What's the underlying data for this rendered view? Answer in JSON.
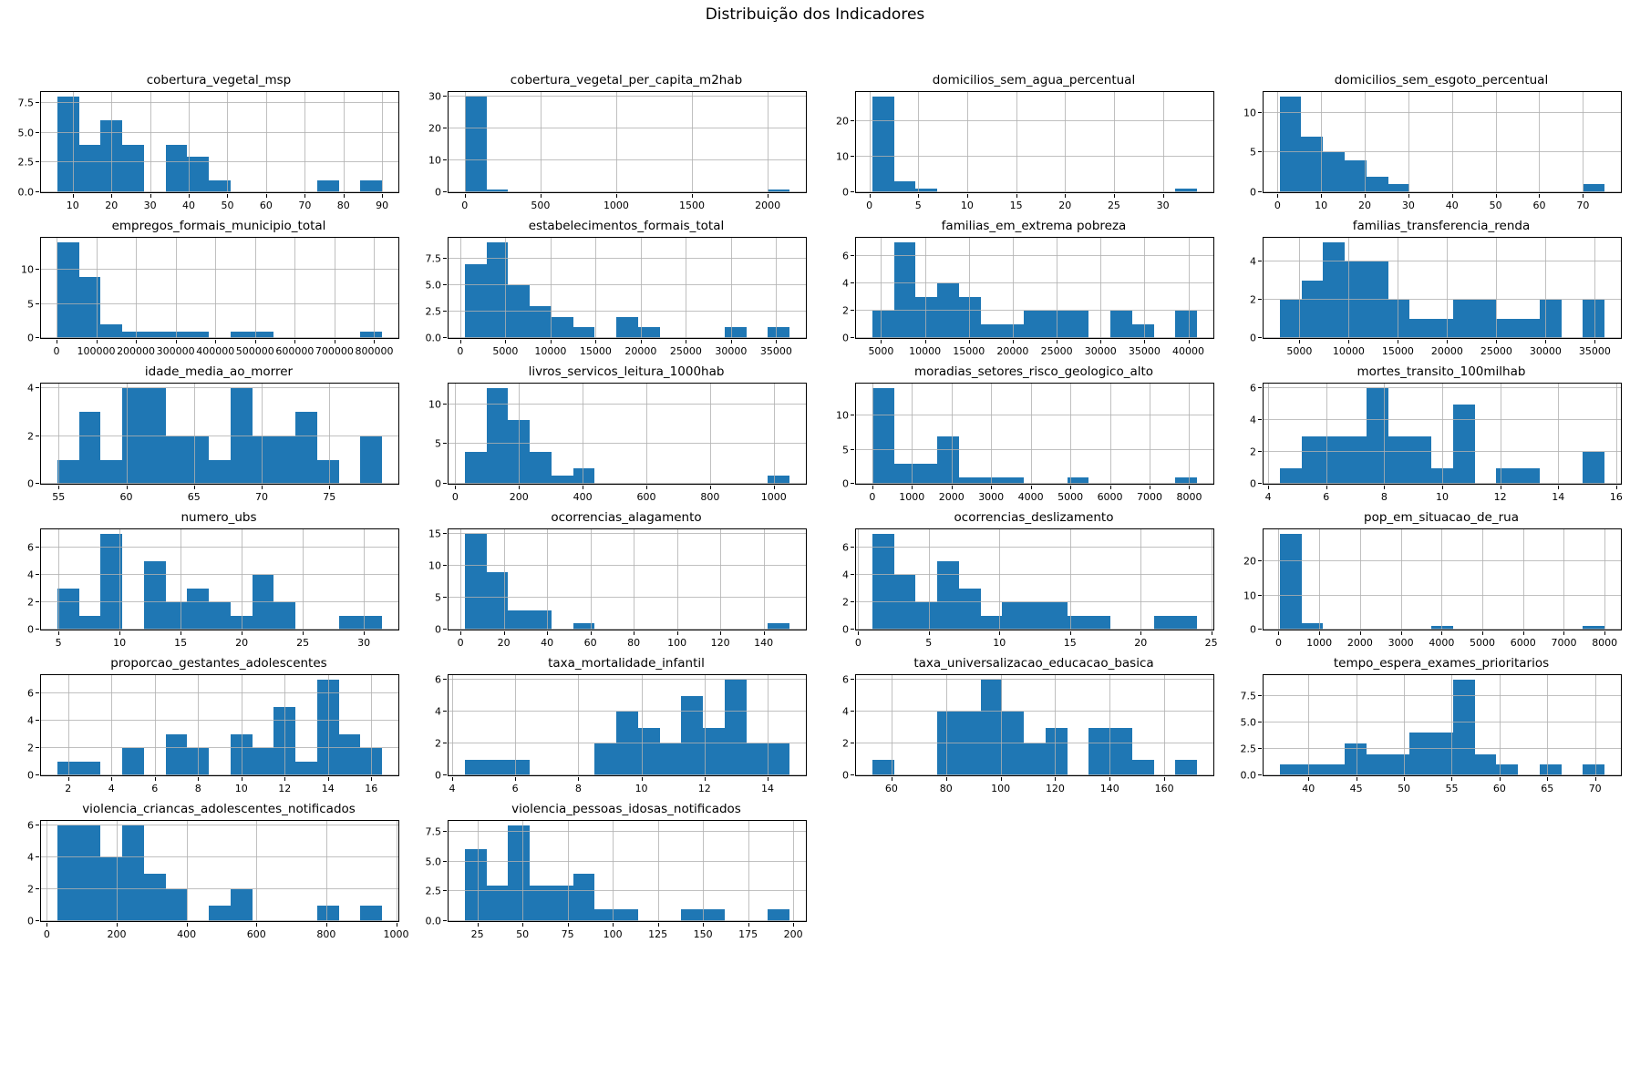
{
  "figure": {
    "title": "Distribuição dos Indicadores",
    "bar_color": "#1f77b4",
    "grid_color": "#b0b0b0",
    "grid": "on",
    "layout": "4 columns x 6 rows of histogram subplots"
  },
  "chart_data": [
    {
      "type": "bar",
      "subtype": "histogram",
      "title": "cobertura_vegetal_msp",
      "bin_start": 6,
      "bin_end": 90,
      "heights": [
        8,
        4,
        6,
        4,
        0,
        4,
        3,
        1,
        0,
        0,
        0,
        0,
        1,
        0,
        1
      ],
      "xlim": [
        1.8,
        94.2
      ],
      "ylim": [
        0,
        8.4
      ],
      "x_ticks": [
        10,
        20,
        30,
        40,
        50,
        60,
        70,
        80,
        90
      ],
      "x_labels": [
        "10",
        "20",
        "30",
        "40",
        "50",
        "60",
        "70",
        "80",
        "90"
      ],
      "y_ticks": [
        0,
        2.5,
        5,
        7.5
      ],
      "y_labels": [
        "0.0",
        "2.5",
        "5.0",
        "7.5"
      ]
    },
    {
      "type": "bar",
      "subtype": "histogram",
      "title": "cobertura_vegetal_per_capita_m2hab",
      "bin_start": 0,
      "bin_end": 2145,
      "heights": [
        30,
        1,
        0,
        0,
        0,
        0,
        0,
        0,
        0,
        0,
        0,
        0,
        0,
        0,
        1
      ],
      "xlim": [
        -107,
        2252
      ],
      "ylim": [
        0,
        31.5
      ],
      "x_ticks": [
        0,
        500,
        1000,
        1500,
        2000
      ],
      "x_labels": [
        "0",
        "500",
        "1000",
        "1500",
        "2000"
      ],
      "y_ticks": [
        0,
        10,
        20,
        30
      ],
      "y_labels": [
        "0",
        "10",
        "20",
        "30"
      ]
    },
    {
      "type": "bar",
      "subtype": "histogram",
      "title": "domicilios_sem_agua_percentual",
      "bin_start": 0.3,
      "bin_end": 33.5,
      "heights": [
        27,
        3,
        1,
        0,
        0,
        0,
        0,
        0,
        0,
        0,
        0,
        0,
        0,
        0,
        1
      ],
      "xlim": [
        -1.36,
        35.16
      ],
      "ylim": [
        0,
        28.35
      ],
      "x_ticks": [
        0,
        5,
        10,
        15,
        20,
        25,
        30
      ],
      "x_labels": [
        "0",
        "5",
        "10",
        "15",
        "20",
        "25",
        "30"
      ],
      "y_ticks": [
        0,
        10,
        20
      ],
      "y_labels": [
        "0",
        "10",
        "20"
      ]
    },
    {
      "type": "bar",
      "subtype": "histogram",
      "title": "domicilios_sem_esgoto_percentual",
      "bin_start": 0.5,
      "bin_end": 75,
      "heights": [
        12,
        7,
        5,
        4,
        2,
        1,
        0,
        0,
        0,
        0,
        0,
        0,
        0,
        0,
        1
      ],
      "xlim": [
        -3.2,
        78.7
      ],
      "ylim": [
        0,
        12.6
      ],
      "x_ticks": [
        0,
        10,
        20,
        30,
        40,
        50,
        60,
        70
      ],
      "x_labels": [
        "0",
        "10",
        "20",
        "30",
        "40",
        "50",
        "60",
        "70"
      ],
      "y_ticks": [
        0,
        5,
        10
      ],
      "y_labels": [
        "0",
        "5",
        "10"
      ]
    },
    {
      "type": "bar",
      "subtype": "histogram",
      "title": "empregos_formais_municipio_total",
      "bin_start": 2000,
      "bin_end": 820000,
      "heights": [
        14,
        9,
        2,
        1,
        1,
        1,
        1,
        0,
        1,
        1,
        0,
        0,
        0,
        0,
        1
      ],
      "xlim": [
        -38900,
        860900
      ],
      "ylim": [
        0,
        14.7
      ],
      "x_ticks": [
        0,
        100000,
        200000,
        300000,
        400000,
        500000,
        600000,
        700000,
        800000
      ],
      "x_labels": [
        "0",
        "100000",
        "200000",
        "300000",
        "400000",
        "500000",
        "600000",
        "700000",
        "800000"
      ],
      "y_ticks": [
        0,
        5,
        10
      ],
      "y_labels": [
        "0",
        "5",
        "10"
      ]
    },
    {
      "type": "bar",
      "subtype": "histogram",
      "title": "estabelecimentos_formais_total",
      "bin_start": 500,
      "bin_end": 36500,
      "heights": [
        7,
        9,
        5,
        3,
        2,
        1,
        0,
        2,
        1,
        0,
        0,
        0,
        1,
        0,
        1
      ],
      "xlim": [
        -1300,
        38300
      ],
      "ylim": [
        0,
        9.45
      ],
      "x_ticks": [
        0,
        5000,
        10000,
        15000,
        20000,
        25000,
        30000,
        35000
      ],
      "x_labels": [
        "0",
        "5000",
        "10000",
        "15000",
        "20000",
        "25000",
        "30000",
        "35000"
      ],
      "y_ticks": [
        0,
        2.5,
        5,
        7.5
      ],
      "y_labels": [
        "0.0",
        "2.5",
        "5.0",
        "7.5"
      ]
    },
    {
      "type": "bar",
      "subtype": "histogram",
      "title": "familias_em_extrema pobreza",
      "bin_start": 4000,
      "bin_end": 41000,
      "heights": [
        2,
        7,
        3,
        4,
        3,
        1,
        1,
        2,
        2,
        2,
        0,
        2,
        1,
        0,
        2
      ],
      "xlim": [
        2150,
        42850
      ],
      "ylim": [
        0,
        7.35
      ],
      "x_ticks": [
        5000,
        10000,
        15000,
        20000,
        25000,
        30000,
        35000,
        40000
      ],
      "x_labels": [
        "5000",
        "10000",
        "15000",
        "20000",
        "25000",
        "30000",
        "35000",
        "40000"
      ],
      "y_ticks": [
        0,
        2,
        4,
        6
      ],
      "y_labels": [
        "0",
        "2",
        "4",
        "6"
      ]
    },
    {
      "type": "bar",
      "subtype": "histogram",
      "title": "familias_transferencia_renda",
      "bin_start": 3000,
      "bin_end": 36000,
      "heights": [
        2,
        3,
        5,
        4,
        4,
        2,
        1,
        1,
        2,
        2,
        1,
        1,
        2,
        0,
        2
      ],
      "xlim": [
        1350,
        37650
      ],
      "ylim": [
        0,
        5.25
      ],
      "x_ticks": [
        5000,
        10000,
        15000,
        20000,
        25000,
        30000,
        35000
      ],
      "x_labels": [
        "5000",
        "10000",
        "15000",
        "20000",
        "25000",
        "30000",
        "35000"
      ],
      "y_ticks": [
        0,
        2,
        4
      ],
      "y_labels": [
        "0",
        "2",
        "4"
      ]
    },
    {
      "type": "bar",
      "subtype": "histogram",
      "title": "idade_media_ao_morrer",
      "bin_start": 54.9,
      "bin_end": 78.9,
      "heights": [
        1,
        3,
        1,
        4,
        4,
        2,
        2,
        1,
        4,
        2,
        2,
        3,
        1,
        0,
        2
      ],
      "xlim": [
        53.7,
        80.1
      ],
      "ylim": [
        0,
        4.2
      ],
      "x_ticks": [
        55,
        60,
        65,
        70,
        75
      ],
      "x_labels": [
        "55",
        "60",
        "65",
        "70",
        "75"
      ],
      "y_ticks": [
        0,
        2,
        4
      ],
      "y_labels": [
        "0",
        "2",
        "4"
      ]
    },
    {
      "type": "bar",
      "subtype": "histogram",
      "title": "livros_servicos_leitura_1000hab",
      "bin_start": 30,
      "bin_end": 1050,
      "heights": [
        4,
        12,
        8,
        4,
        1,
        2,
        0,
        0,
        0,
        0,
        0,
        0,
        0,
        0,
        1
      ],
      "xlim": [
        -21,
        1101
      ],
      "ylim": [
        0,
        12.6
      ],
      "x_ticks": [
        0,
        200,
        400,
        600,
        800,
        1000
      ],
      "x_labels": [
        "0",
        "200",
        "400",
        "600",
        "800",
        "1000"
      ],
      "y_ticks": [
        0,
        5,
        10
      ],
      "y_labels": [
        "0",
        "5",
        "10"
      ]
    },
    {
      "type": "bar",
      "subtype": "histogram",
      "title": "moradias_setores_risco_geologico_alto",
      "bin_start": 0,
      "bin_end": 8200,
      "heights": [
        14,
        3,
        3,
        7,
        1,
        1,
        1,
        0,
        0,
        1,
        0,
        0,
        0,
        0,
        1
      ],
      "xlim": [
        -410,
        8610
      ],
      "ylim": [
        0,
        14.7
      ],
      "x_ticks": [
        0,
        1000,
        2000,
        3000,
        4000,
        5000,
        6000,
        7000,
        8000
      ],
      "x_labels": [
        "0",
        "1000",
        "2000",
        "3000",
        "4000",
        "5000",
        "6000",
        "7000",
        "8000"
      ],
      "y_ticks": [
        0,
        5,
        10
      ],
      "y_labels": [
        "0",
        "5",
        "10"
      ]
    },
    {
      "type": "bar",
      "subtype": "histogram",
      "title": "mortes_transito_100milhab",
      "bin_start": 4.4,
      "bin_end": 15.6,
      "heights": [
        1,
        3,
        3,
        3,
        6,
        3,
        3,
        1,
        5,
        0,
        1,
        1,
        0,
        0,
        2
      ],
      "xlim": [
        3.84,
        16.16
      ],
      "ylim": [
        0,
        6.3
      ],
      "x_ticks": [
        4,
        6,
        8,
        10,
        12,
        14,
        16
      ],
      "x_labels": [
        "4",
        "6",
        "8",
        "10",
        "12",
        "14",
        "16"
      ],
      "y_ticks": [
        0,
        2,
        4,
        6
      ],
      "y_labels": [
        "0",
        "2",
        "4",
        "6"
      ]
    },
    {
      "type": "bar",
      "subtype": "histogram",
      "title": "numero_ubs",
      "bin_start": 4.9,
      "bin_end": 31.5,
      "heights": [
        3,
        1,
        7,
        0,
        5,
        2,
        3,
        2,
        1,
        4,
        2,
        0,
        0,
        1,
        1
      ],
      "xlim": [
        3.57,
        32.83
      ],
      "ylim": [
        0,
        7.35
      ],
      "x_ticks": [
        5,
        10,
        15,
        20,
        25,
        30
      ],
      "x_labels": [
        "5",
        "10",
        "15",
        "20",
        "25",
        "30"
      ],
      "y_ticks": [
        0,
        2,
        4,
        6
      ],
      "y_labels": [
        "0",
        "2",
        "4",
        "6"
      ]
    },
    {
      "type": "bar",
      "subtype": "histogram",
      "title": "ocorrencias_alagamento",
      "bin_start": 2,
      "bin_end": 152,
      "heights": [
        15,
        9,
        3,
        3,
        0,
        1,
        0,
        0,
        0,
        0,
        0,
        0,
        0,
        0,
        1
      ],
      "xlim": [
        -5.5,
        159.5
      ],
      "ylim": [
        0,
        15.75
      ],
      "x_ticks": [
        0,
        20,
        40,
        60,
        80,
        100,
        120,
        140
      ],
      "x_labels": [
        "0",
        "20",
        "40",
        "60",
        "80",
        "100",
        "120",
        "140"
      ],
      "y_ticks": [
        0,
        5,
        10,
        15
      ],
      "y_labels": [
        "0",
        "5",
        "10",
        "15"
      ]
    },
    {
      "type": "bar",
      "subtype": "histogram",
      "title": "ocorrencias_deslizamento",
      "bin_start": 1,
      "bin_end": 24,
      "heights": [
        7,
        4,
        2,
        5,
        3,
        1,
        2,
        2,
        2,
        1,
        1,
        0,
        0,
        1,
        1
      ],
      "xlim": [
        -0.15,
        25.15
      ],
      "ylim": [
        0,
        7.35
      ],
      "x_ticks": [
        0,
        5,
        10,
        15,
        20,
        25
      ],
      "x_labels": [
        "0",
        "5",
        "10",
        "15",
        "20",
        "25"
      ],
      "y_ticks": [
        0,
        2,
        4,
        6
      ],
      "y_labels": [
        "0",
        "2",
        "4",
        "6"
      ]
    },
    {
      "type": "bar",
      "subtype": "histogram",
      "title": "pop_em_situacao_de_rua",
      "bin_start": 30,
      "bin_end": 8000,
      "heights": [
        28,
        2,
        0,
        0,
        0,
        0,
        0,
        1,
        0,
        0,
        0,
        0,
        0,
        0,
        1
      ],
      "xlim": [
        -368,
        8398
      ],
      "ylim": [
        0,
        29.4
      ],
      "x_ticks": [
        0,
        1000,
        2000,
        3000,
        4000,
        5000,
        6000,
        7000,
        8000
      ],
      "x_labels": [
        "0",
        "1000",
        "2000",
        "3000",
        "4000",
        "5000",
        "6000",
        "7000",
        "8000"
      ],
      "y_ticks": [
        0,
        10,
        20
      ],
      "y_labels": [
        "0",
        "10",
        "20"
      ]
    },
    {
      "type": "bar",
      "subtype": "histogram",
      "title": "proporcao_gestantes_adolescentes",
      "bin_start": 1.5,
      "bin_end": 16.5,
      "heights": [
        1,
        1,
        0,
        2,
        0,
        3,
        2,
        0,
        3,
        2,
        5,
        1,
        7,
        3,
        2
      ],
      "xlim": [
        0.75,
        17.25
      ],
      "ylim": [
        0,
        7.35
      ],
      "x_ticks": [
        2,
        4,
        6,
        8,
        10,
        12,
        14,
        16
      ],
      "x_labels": [
        "2",
        "4",
        "6",
        "8",
        "10",
        "12",
        "14",
        "16"
      ],
      "y_ticks": [
        0,
        2,
        4,
        6
      ],
      "y_labels": [
        "0",
        "2",
        "4",
        "6"
      ]
    },
    {
      "type": "bar",
      "subtype": "histogram",
      "title": "taxa_mortalidade_infantil",
      "bin_start": 4.4,
      "bin_end": 14.7,
      "heights": [
        1,
        1,
        1,
        0,
        0,
        0,
        2,
        4,
        3,
        2,
        5,
        3,
        6,
        2,
        2
      ],
      "xlim": [
        3.885,
        15.215
      ],
      "ylim": [
        0,
        6.3
      ],
      "x_ticks": [
        4,
        6,
        8,
        10,
        12,
        14
      ],
      "x_labels": [
        "4",
        "6",
        "8",
        "10",
        "12",
        "14"
      ],
      "y_ticks": [
        0,
        2,
        4,
        6
      ],
      "y_labels": [
        "0",
        "2",
        "4",
        "6"
      ]
    },
    {
      "type": "bar",
      "subtype": "histogram",
      "title": "taxa_universalizacao_educacao_basica",
      "bin_start": 53,
      "bin_end": 172,
      "heights": [
        1,
        0,
        0,
        4,
        4,
        6,
        4,
        2,
        3,
        0,
        3,
        3,
        1,
        0,
        1
      ],
      "xlim": [
        47,
        178
      ],
      "ylim": [
        0,
        6.3
      ],
      "x_ticks": [
        60,
        80,
        100,
        120,
        140,
        160
      ],
      "x_labels": [
        "60",
        "80",
        "100",
        "120",
        "140",
        "160"
      ],
      "y_ticks": [
        0,
        2,
        4,
        6
      ],
      "y_labels": [
        "0",
        "2",
        "4",
        "6"
      ]
    },
    {
      "type": "bar",
      "subtype": "histogram",
      "title": "tempo_espera_exames_prioritarios",
      "bin_start": 37,
      "bin_end": 71,
      "heights": [
        1,
        1,
        1,
        3,
        2,
        2,
        4,
        4,
        9,
        2,
        1,
        0,
        1,
        0,
        1
      ],
      "xlim": [
        35.3,
        72.7
      ],
      "ylim": [
        0,
        9.45
      ],
      "x_ticks": [
        40,
        45,
        50,
        55,
        60,
        65,
        70
      ],
      "x_labels": [
        "40",
        "45",
        "50",
        "55",
        "60",
        "65",
        "70"
      ],
      "y_ticks": [
        0,
        2.5,
        5,
        7.5
      ],
      "y_labels": [
        "0.0",
        "2.5",
        "5.0",
        "7.5"
      ]
    },
    {
      "type": "bar",
      "subtype": "histogram",
      "title": "violencia_criancas_adolescentes_notificados",
      "bin_start": 30,
      "bin_end": 960,
      "heights": [
        6,
        6,
        4,
        6,
        3,
        2,
        0,
        1,
        2,
        0,
        0,
        0,
        1,
        0,
        1
      ],
      "xlim": [
        -16.5,
        1006.5
      ],
      "ylim": [
        0,
        6.3
      ],
      "x_ticks": [
        0,
        200,
        400,
        600,
        800,
        1000
      ],
      "x_labels": [
        "0",
        "200",
        "400",
        "600",
        "800",
        "1000"
      ],
      "y_ticks": [
        0,
        2,
        4,
        6
      ],
      "y_labels": [
        "0",
        "2",
        "4",
        "6"
      ]
    },
    {
      "type": "bar",
      "subtype": "histogram",
      "title": "violencia_pessoas_idosas_notificados",
      "bin_start": 18,
      "bin_end": 198,
      "heights": [
        6,
        3,
        8,
        3,
        3,
        4,
        1,
        1,
        0,
        0,
        1,
        1,
        0,
        0,
        1
      ],
      "xlim": [
        9,
        207
      ],
      "ylim": [
        0,
        8.4
      ],
      "x_ticks": [
        25,
        50,
        75,
        100,
        125,
        150,
        175,
        200
      ],
      "x_labels": [
        "25",
        "50",
        "75",
        "100",
        "125",
        "150",
        "175",
        "200"
      ],
      "y_ticks": [
        0,
        2.5,
        5,
        7.5
      ],
      "y_labels": [
        "0.0",
        "2.5",
        "5.0",
        "7.5"
      ]
    }
  ]
}
